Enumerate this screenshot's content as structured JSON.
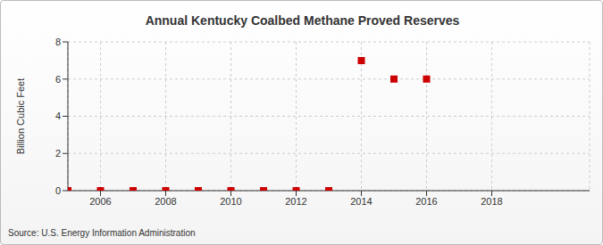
{
  "chart_data": {
    "type": "scatter",
    "title": "Annual Kentucky Coalbed Methane Proved Reserves",
    "y_label": "Billion Cubic Feet",
    "source": "Source: U.S. Energy Information Administration",
    "x": [
      2005,
      2006,
      2007,
      2008,
      2009,
      2010,
      2011,
      2012,
      2013,
      2014,
      2015,
      2016
    ],
    "values": [
      0,
      0,
      0,
      0,
      0,
      0,
      0,
      0,
      0,
      7,
      6,
      6
    ],
    "color": "#cc0000",
    "marker": "square",
    "xlim": [
      2005,
      2021
    ],
    "xticks": [
      2006,
      2008,
      2010,
      2012,
      2014,
      2016,
      2018
    ],
    "ylim": [
      0,
      8
    ],
    "yticks": [
      0,
      2,
      4,
      6,
      8
    ],
    "grid": true
  }
}
